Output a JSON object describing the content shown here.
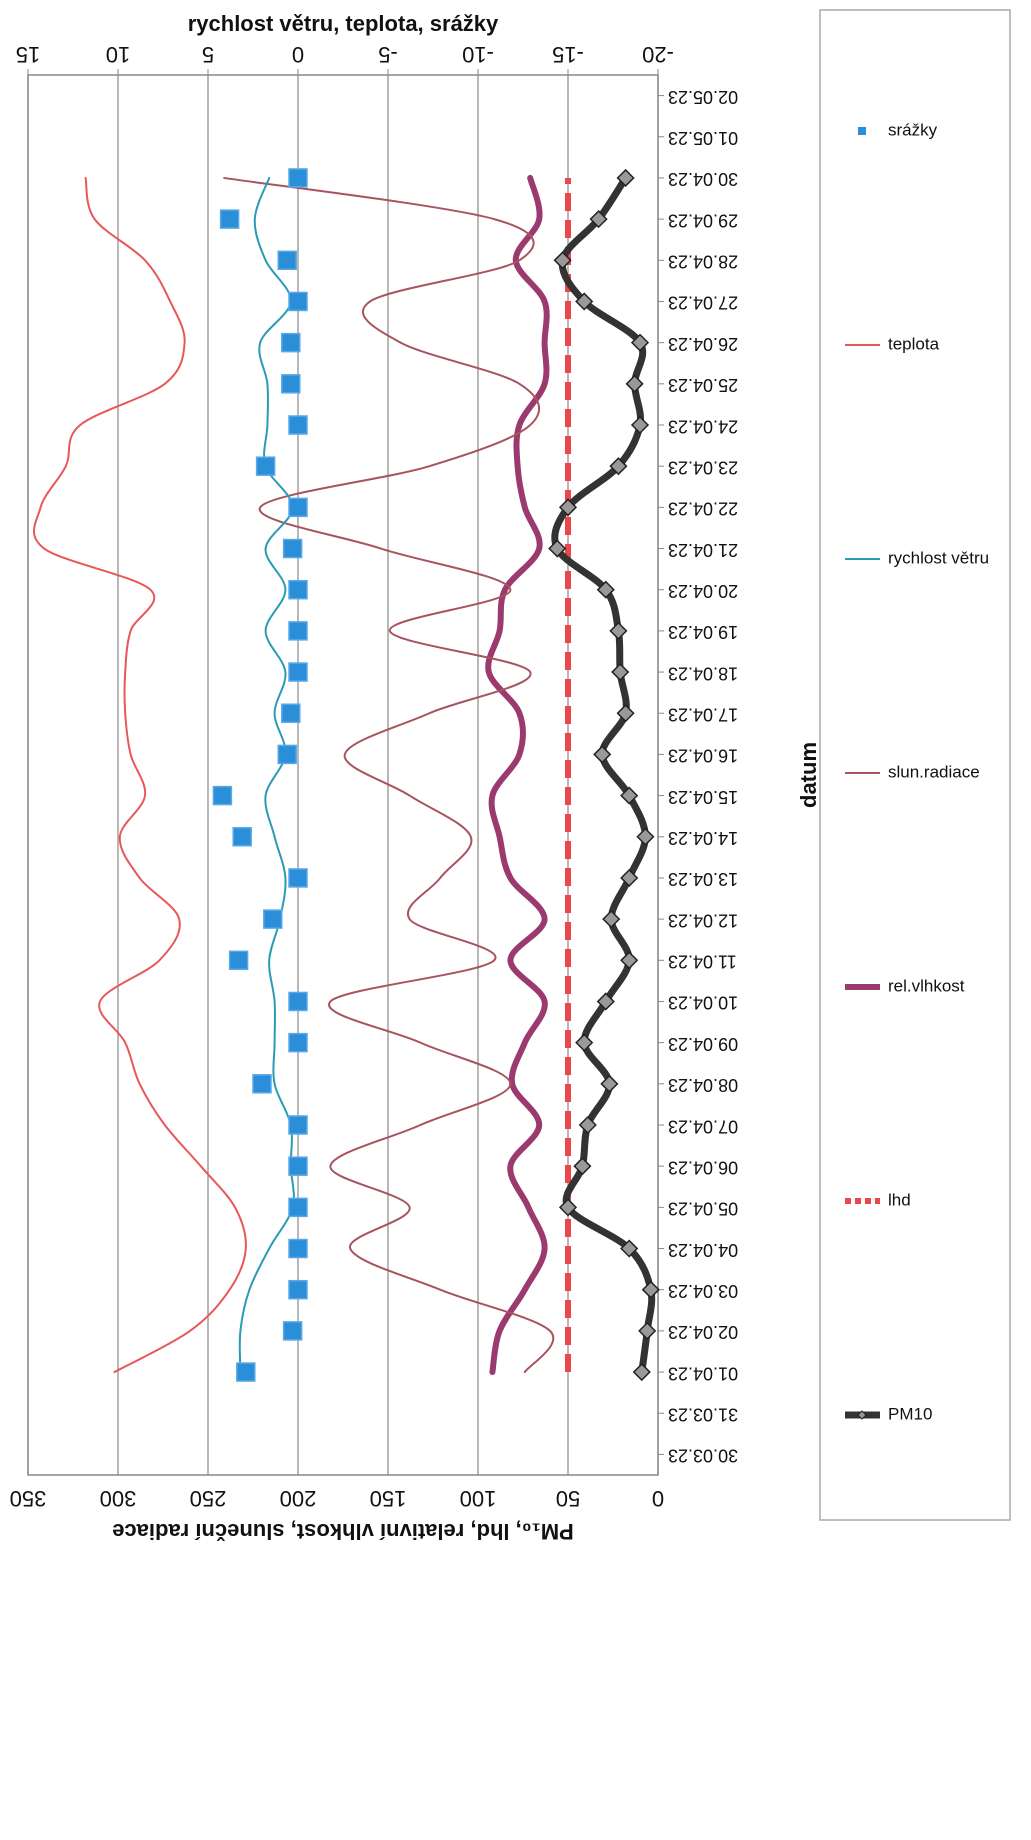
{
  "chart_data": {
    "type": "line",
    "x_label": "datum",
    "y_label": "PM₁₀, lhd, relativní vlhkost, sluneční radiace",
    "y2_label": "rychlost větru, teplota, srážky",
    "categories": [
      "30.03.23",
      "31.03.23",
      "01.04.23",
      "02.04.23",
      "03.04.23",
      "04.04.23",
      "05.04.23",
      "06.04.23",
      "07.04.23",
      "08.04.23",
      "09.04.23",
      "10.04.23",
      "11.04.23",
      "12.04.23",
      "13.04.23",
      "14.04.23",
      "15.04.23",
      "16.04.23",
      "17.04.23",
      "18.04.23",
      "19.04.23",
      "20.04.23",
      "21.04.23",
      "22.04.23",
      "23.04.23",
      "24.04.23",
      "25.04.23",
      "26.04.23",
      "27.04.23",
      "28.04.23",
      "29.04.23",
      "30.04.23",
      "01.05.23",
      "02.05.23"
    ],
    "ylim": [
      0,
      350
    ],
    "yticks": [
      0,
      50,
      100,
      150,
      200,
      250,
      300,
      350
    ],
    "y2lim": [
      -20,
      15
    ],
    "y2ticks": [
      -20,
      -15,
      -10,
      -5,
      0,
      5,
      10,
      15
    ],
    "grid": true,
    "legend": "bottom",
    "series": [
      {
        "name": "PM10",
        "color": "#333333",
        "kind": "line",
        "width": 7,
        "marker": "diamond",
        "values": [
          null,
          null,
          9,
          6,
          4,
          16,
          50,
          42,
          39,
          27,
          41,
          29,
          16,
          26,
          16,
          7,
          16,
          31,
          18,
          21,
          22,
          29,
          56,
          50,
          22,
          10,
          13,
          10,
          41,
          53,
          33,
          18,
          null,
          null
        ]
      },
      {
        "name": "lhd",
        "color": "#e8474c",
        "kind": "line",
        "width": 6,
        "dashed": true,
        "values": [
          null,
          null,
          50,
          50,
          50,
          50,
          50,
          50,
          50,
          50,
          50,
          50,
          50,
          50,
          50,
          50,
          50,
          50,
          50,
          50,
          50,
          50,
          50,
          50,
          50,
          50,
          50,
          50,
          50,
          50,
          50,
          50,
          null,
          null
        ]
      },
      {
        "name": "rel.vlhkost",
        "color": "#9b3a6e",
        "kind": "line",
        "width": 6,
        "values": [
          null,
          null,
          92,
          88,
          74,
          63,
          72,
          82,
          66,
          81,
          74,
          63,
          82,
          63,
          82,
          88,
          92,
          77,
          77,
          94,
          88,
          85,
          66,
          74,
          78,
          77,
          63,
          63,
          63,
          79,
          66,
          71,
          null,
          null
        ]
      },
      {
        "name": "slun.radiace",
        "color": "#a8545e",
        "kind": "line",
        "width": 2,
        "values": [
          null,
          null,
          74,
          60,
          121,
          171,
          138,
          182,
          132,
          82,
          132,
          182,
          91,
          138,
          121,
          104,
          138,
          174,
          127,
          71,
          149,
          82,
          154,
          221,
          127,
          71,
          77,
          143,
          160,
          77,
          91,
          241,
          null,
          null
        ]
      },
      {
        "name": "rychlost větru",
        "color": "#2a9bb5",
        "kind": "line",
        "width": 2,
        "axis": "y2",
        "values": [
          null,
          null,
          3.2,
          3.2,
          2.7,
          1.6,
          0.3,
          0.4,
          0.4,
          1.3,
          1.3,
          1.3,
          1.6,
          1.0,
          0.7,
          1.3,
          1.8,
          0.7,
          1.3,
          0.7,
          1.8,
          0.7,
          1.8,
          0.3,
          1.8,
          1.7,
          1.7,
          2.1,
          0.4,
          1.8,
          2.4,
          1.6,
          null,
          null
        ]
      },
      {
        "name": "teplota",
        "color": "#e8575a",
        "kind": "line",
        "width": 2,
        "axis": "y2",
        "values": [
          null,
          null,
          10.2,
          6.0,
          3.8,
          2.9,
          3.5,
          5.4,
          7.4,
          8.8,
          9.6,
          11.0,
          7.7,
          6.6,
          8.8,
          9.9,
          8.5,
          9.3,
          9.6,
          9.6,
          9.3,
          8.2,
          14.1,
          14.3,
          12.9,
          12.1,
          7.4,
          6.3,
          7.1,
          8.5,
          11.3,
          11.8,
          null,
          null
        ]
      },
      {
        "name": "srážky",
        "color": "#2a8ed8",
        "kind": "points",
        "marker": "square",
        "axis": "y2",
        "values": [
          null,
          null,
          2.9,
          0.3,
          0,
          0,
          0,
          0,
          0,
          2.0,
          0,
          0,
          3.3,
          1.4,
          0,
          3.1,
          4.2,
          0.6,
          0.4,
          0,
          0,
          0,
          0.3,
          0,
          1.8,
          0,
          0.4,
          0.4,
          0,
          0.6,
          3.8,
          0,
          null,
          null
        ]
      }
    ]
  }
}
